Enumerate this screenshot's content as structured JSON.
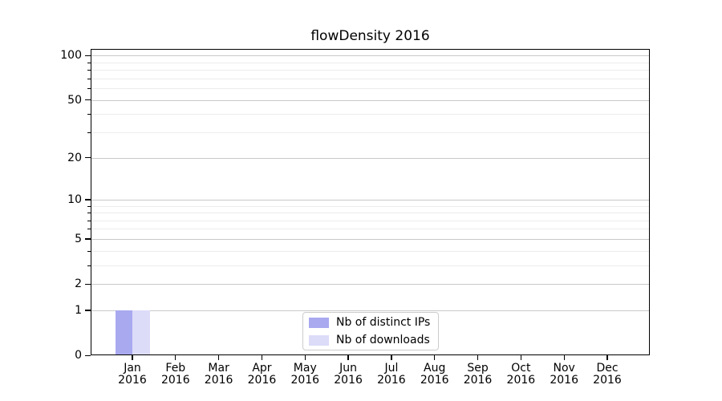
{
  "title": "flowDensity 2016",
  "chart_data": {
    "type": "bar",
    "title": "flowDensity 2016",
    "categories": [
      {
        "month": "Jan",
        "year": "2016"
      },
      {
        "month": "Feb",
        "year": "2016"
      },
      {
        "month": "Mar",
        "year": "2016"
      },
      {
        "month": "Apr",
        "year": "2016"
      },
      {
        "month": "May",
        "year": "2016"
      },
      {
        "month": "Jun",
        "year": "2016"
      },
      {
        "month": "Jul",
        "year": "2016"
      },
      {
        "month": "Aug",
        "year": "2016"
      },
      {
        "month": "Sep",
        "year": "2016"
      },
      {
        "month": "Oct",
        "year": "2016"
      },
      {
        "month": "Nov",
        "year": "2016"
      },
      {
        "month": "Dec",
        "year": "2016"
      }
    ],
    "series": [
      {
        "name": "Nb of distinct IPs",
        "color": "#a9a9f0",
        "values": [
          1,
          0,
          0,
          0,
          0,
          0,
          0,
          0,
          0,
          0,
          0,
          0
        ]
      },
      {
        "name": "Nb of downloads",
        "color": "#dcdcf8",
        "values": [
          1,
          0,
          0,
          0,
          0,
          0,
          0,
          0,
          0,
          0,
          0,
          0
        ]
      }
    ],
    "xlabel": "",
    "ylabel": "",
    "yscale": "log1p",
    "ylim": [
      0,
      110
    ],
    "y_major_ticks": [
      0,
      1,
      2,
      5,
      10,
      20,
      50,
      100
    ],
    "y_minor_ticks": [
      3,
      4,
      6,
      7,
      8,
      9,
      30,
      40,
      60,
      70,
      80,
      90
    ],
    "grid": "horizontal",
    "legend_position": "lower center inside plot"
  },
  "colors": {
    "major_grid": "#c9c9c9",
    "minor_grid": "#ececec",
    "spine": "#000000",
    "legend_border": "#cccccc",
    "background": "#ffffff"
  }
}
